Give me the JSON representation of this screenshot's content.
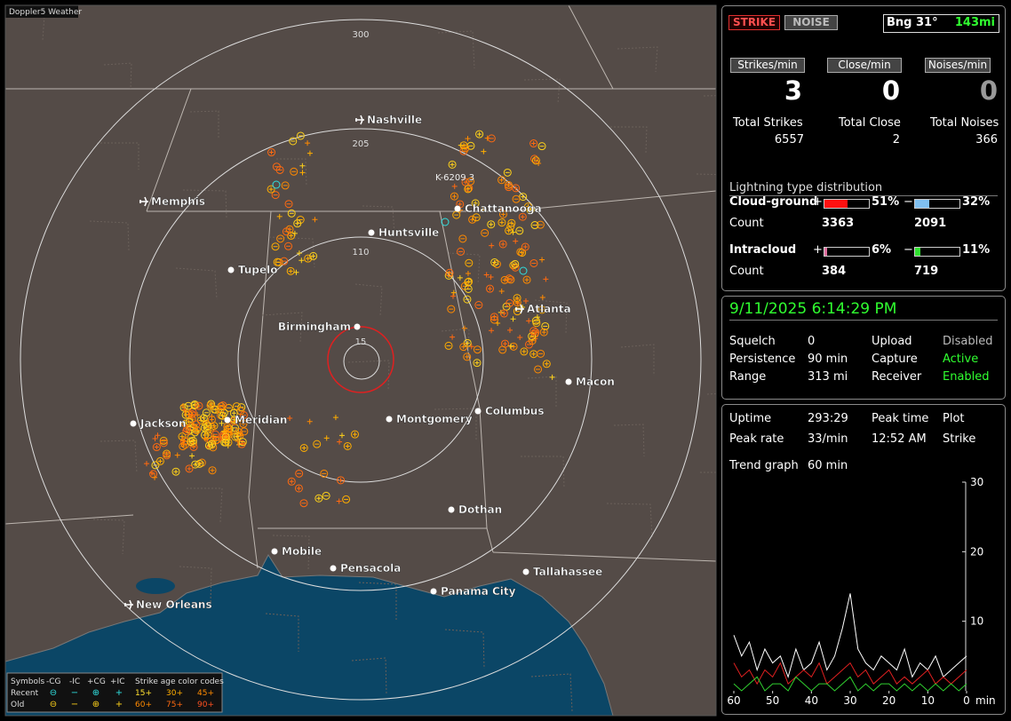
{
  "map": {
    "title": "Doppler5 Weather",
    "ring_labels": [
      "300",
      "205",
      "110",
      "15"
    ],
    "annotation": "K-6209 3",
    "cities": [
      "Nashville",
      "Memphis",
      "Chattanooga",
      "Huntsville",
      "Tupelo",
      "Birmingham",
      "Atlanta",
      "Macon",
      "Jackson",
      "Meridian",
      "Montgomery",
      "Columbus",
      "Dothan",
      "Mobile",
      "Pensacola",
      "Tallahassee",
      "Panama City",
      "New Orleans"
    ],
    "legend": {
      "symbols": "Symbols",
      "cols": [
        "-CG",
        "-IC",
        "+CG",
        "+IC"
      ],
      "age_title": "Strike age color codes",
      "rows": [
        "Recent",
        "Old"
      ],
      "ages": [
        "15+",
        "30+",
        "45+",
        "60+",
        "75+",
        "90+"
      ]
    }
  },
  "panel": {
    "strike_btn": "STRIKE",
    "noise_btn": "NOISE",
    "bearing": "Bng 31°",
    "distance": "143mi",
    "rates": [
      {
        "label": "Strikes/min",
        "value": "3"
      },
      {
        "label": "Close/min",
        "value": "0"
      },
      {
        "label": "Noises/min",
        "value": "0"
      }
    ],
    "totals": [
      {
        "label": "Total Strikes",
        "value": "6557"
      },
      {
        "label": "Total Close",
        "value": "2"
      },
      {
        "label": "Total Noises",
        "value": "366"
      }
    ],
    "dist_title": "Lightning type distribution",
    "dist": [
      {
        "label": "Cloud-ground",
        "pos": {
          "value": 51,
          "label": "51%"
        },
        "neg": {
          "value": 32,
          "label": "32%"
        },
        "count_label": "Count",
        "pos_count": "3363",
        "neg_count": "2091"
      },
      {
        "label": "Intracloud",
        "pos": {
          "value": 6,
          "label": "6%"
        },
        "neg": {
          "value": 11,
          "label": "11%"
        },
        "count_label": "Count",
        "pos_count": "384",
        "neg_count": "719"
      }
    ]
  },
  "status": {
    "datetime": "9/11/2025 6:14:29 PM",
    "rows": [
      [
        "Squelch",
        "0",
        "Upload",
        "Disabled"
      ],
      [
        "Persistence",
        "90 min",
        "Capture",
        "Active"
      ],
      [
        "Range",
        "313 mi",
        "Receiver",
        "Enabled"
      ]
    ]
  },
  "stats": {
    "rows": [
      [
        "Uptime",
        "293:29",
        "Peak time",
        "Plot"
      ],
      [
        "Peak rate",
        "33/min",
        "12:52 AM",
        "Strike"
      ]
    ],
    "trend_label": "Trend graph",
    "trend_value": "60 min"
  },
  "chart_data": {
    "type": "line",
    "x": [
      60,
      58,
      56,
      54,
      52,
      50,
      48,
      46,
      44,
      42,
      40,
      38,
      36,
      34,
      32,
      30,
      28,
      26,
      24,
      22,
      20,
      18,
      16,
      14,
      12,
      10,
      8,
      6,
      4,
      2,
      0
    ],
    "series": [
      {
        "color": "#ffffff",
        "values": [
          8,
          5,
          7,
          3,
          6,
          4,
          5,
          2,
          6,
          3,
          4,
          7,
          3,
          5,
          9,
          14,
          6,
          4,
          3,
          5,
          4,
          3,
          6,
          2,
          4,
          3,
          5,
          2,
          3,
          4,
          5
        ]
      },
      {
        "color": "#e02020",
        "values": [
          4,
          2,
          3,
          1,
          3,
          2,
          4,
          1,
          2,
          3,
          2,
          4,
          1,
          2,
          3,
          4,
          2,
          3,
          1,
          2,
          3,
          1,
          2,
          1,
          2,
          3,
          1,
          2,
          1,
          2,
          3
        ]
      },
      {
        "color": "#30d030",
        "values": [
          1,
          0,
          1,
          2,
          0,
          1,
          1,
          0,
          2,
          1,
          0,
          1,
          1,
          0,
          1,
          2,
          0,
          1,
          0,
          1,
          1,
          0,
          1,
          0,
          1,
          0,
          1,
          0,
          1,
          0,
          1
        ]
      }
    ],
    "xlim": [
      60,
      0
    ],
    "ylim": [
      0,
      30
    ],
    "xticks": [
      60,
      50,
      40,
      30,
      20,
      10,
      0
    ],
    "yticks": [
      10,
      20,
      30
    ],
    "xlabel": "min"
  }
}
